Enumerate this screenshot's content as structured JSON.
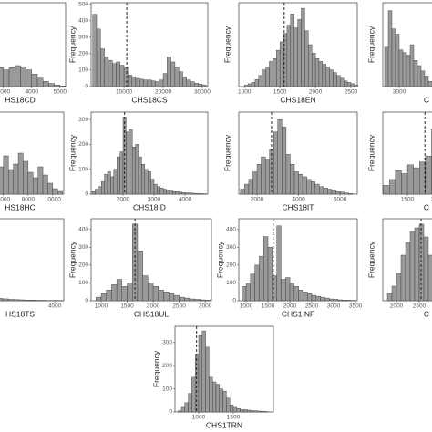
{
  "chart_data": [
    {
      "type": "histogram",
      "x_label": "HS18CD",
      "bins": [
        1000,
        1200,
        1400,
        1600,
        1800,
        2000,
        2200,
        2400,
        2600,
        2800,
        3000,
        3200,
        3400,
        3600,
        3800,
        4000,
        4200,
        4400,
        4600,
        4800,
        5000,
        5200
      ],
      "counts": [
        5,
        20,
        60,
        110,
        150,
        170,
        140,
        120,
        100,
        90,
        80,
        90,
        100,
        95,
        80,
        60,
        40,
        25,
        15,
        8,
        3
      ],
      "xlim": [
        1070,
        5200
      ],
      "ylim": [
        0,
        400
      ],
      "xticks": [
        3000,
        4000,
        5000
      ]
    },
    {
      "type": "histogram",
      "x_label": "CHS18CS",
      "y_label": "Frequency",
      "bins": [
        2000,
        3000,
        4000,
        5000,
        6000,
        7000,
        8000,
        9000,
        10000,
        11000,
        12000,
        13000,
        14000,
        15000,
        16000,
        17000,
        18000,
        19000,
        20000,
        21000,
        22000,
        23000,
        24000,
        25000,
        26000,
        27000,
        28000,
        29000,
        30000,
        31000
      ],
      "counts": [
        440,
        350,
        230,
        180,
        160,
        140,
        150,
        130,
        120,
        70,
        60,
        50,
        45,
        40,
        40,
        35,
        30,
        40,
        80,
        180,
        150,
        120,
        90,
        60,
        40,
        30,
        20,
        15,
        10
      ],
      "xlim": [
        1600,
        31400
      ],
      "ylim": [
        0,
        510
      ],
      "xticks": [
        10000,
        20000,
        30000
      ],
      "yticks": [
        0,
        100,
        200,
        300,
        400,
        500
      ],
      "mean": 10700
    },
    {
      "type": "histogram",
      "x_label": "CHS18EN",
      "y_label": "Frequency",
      "bins": [
        1000,
        1050,
        1100,
        1150,
        1200,
        1250,
        1300,
        1350,
        1400,
        1450,
        1500,
        1550,
        1600,
        1650,
        1700,
        1750,
        1800,
        1850,
        1900,
        1950,
        2000,
        2050,
        2100,
        2150,
        2200,
        2250,
        2300,
        2350,
        2400,
        2450,
        2500,
        2550,
        2600
      ],
      "counts": [
        5,
        10,
        15,
        25,
        40,
        60,
        70,
        90,
        100,
        130,
        160,
        190,
        220,
        260,
        210,
        240,
        280,
        200,
        150,
        120,
        100,
        90,
        80,
        70,
        60,
        50,
        40,
        30,
        20,
        15,
        10,
        5
      ],
      "xlim": [
        920,
        2590
      ],
      "ylim": [
        0,
        300
      ],
      "xticks": [
        1000,
        1500,
        2000,
        2500
      ],
      "mean": 1560
    },
    {
      "type": "histogram",
      "x_label": "C",
      "y_label": "Frequency",
      "bins": [
        2600,
        2700,
        2800,
        2900,
        3000,
        3100,
        3200,
        3300,
        3400,
        3500,
        3600,
        3700,
        3800,
        3900
      ],
      "counts": [
        150,
        290,
        220,
        200,
        140,
        130,
        120,
        160,
        100,
        80,
        60,
        40,
        20
      ],
      "xlim": [
        2550,
        5750
      ],
      "ylim": [
        0,
        320
      ],
      "xticks": [
        3000
      ]
    },
    {
      "type": "histogram",
      "x_label": "HS18HC",
      "bins": [
        1600,
        2000,
        2400,
        2800,
        3200,
        3600,
        4000,
        4400,
        4800,
        5200,
        5600,
        6000,
        6400,
        6800,
        7200,
        7600,
        8000,
        8400,
        8800,
        9200,
        9600,
        10000,
        10400,
        10800
      ],
      "counts": [
        10,
        30,
        60,
        80,
        100,
        130,
        160,
        180,
        150,
        120,
        100,
        140,
        90,
        110,
        150,
        120,
        80,
        60,
        100,
        70,
        40,
        20,
        10
      ],
      "xlim": [
        1420,
        10900
      ],
      "ylim": [
        0,
        300
      ],
      "xticks": [
        6000,
        8000,
        10000
      ]
    },
    {
      "type": "histogram",
      "x_label": "CHS18ID",
      "y_label": "Frequency",
      "bins": [
        1000,
        1100,
        1200,
        1300,
        1400,
        1500,
        1600,
        1700,
        1800,
        1900,
        2000,
        2100,
        2200,
        2300,
        2400,
        2500,
        2600,
        2700,
        2800,
        2900,
        3000,
        3100,
        3200,
        3300,
        3400,
        3500,
        3600,
        3700,
        3800,
        3900,
        4000,
        4100,
        4200,
        4300,
        4400,
        4500,
        4600,
        4700
      ],
      "counts": [
        10,
        20,
        30,
        50,
        80,
        90,
        70,
        100,
        150,
        170,
        310,
        250,
        260,
        190,
        200,
        150,
        120,
        100,
        90,
        60,
        40,
        30,
        25,
        20,
        15,
        15,
        10,
        10,
        8,
        6,
        5,
        5,
        4,
        3,
        2,
        2,
        1
      ],
      "xlim": [
        970,
        4735
      ],
      "ylim": [
        0,
        330
      ],
      "xticks": [
        2000,
        3000,
        4000
      ],
      "yticks": [
        0,
        100,
        200,
        300
      ],
      "mean": 2050
    },
    {
      "type": "histogram",
      "x_label": "CHS18IT",
      "y_label": "Frequency",
      "bins": [
        1200,
        1400,
        1600,
        1800,
        2000,
        2200,
        2400,
        2600,
        2800,
        3000,
        3200,
        3400,
        3600,
        3800,
        4000,
        4200,
        4400,
        4600,
        4800,
        5000,
        5200,
        5400,
        5600,
        5800,
        6000,
        6200,
        6400,
        6600
      ],
      "counts": [
        20,
        40,
        60,
        90,
        120,
        150,
        140,
        180,
        250,
        300,
        270,
        160,
        120,
        90,
        80,
        70,
        60,
        50,
        40,
        30,
        25,
        20,
        15,
        10,
        8,
        5,
        3
      ],
      "xlim": [
        1120,
        6830
      ],
      "ylim": [
        0,
        330
      ],
      "xticks": [
        2000,
        4000,
        6000
      ],
      "mean": 2700
    },
    {
      "type": "histogram",
      "x_label": "C",
      "y_label": "Frequency",
      "bins": [
        1100,
        1200,
        1300,
        1400,
        1500,
        1600,
        1700,
        1800,
        1900,
        2000,
        2100,
        2200,
        2300,
        2400,
        2500,
        2600,
        2700
      ],
      "counts": [
        30,
        50,
        80,
        70,
        100,
        90,
        110,
        130,
        220,
        170,
        250,
        160,
        140,
        100,
        60,
        30
      ],
      "xlim": [
        1090,
        3030
      ],
      "ylim": [
        0,
        280
      ],
      "xticks": [
        1500,
        2000
      ],
      "mean": 1790
    },
    {
      "type": "histogram",
      "x_label": "HS18TS",
      "bins": [
        100,
        300,
        500,
        700,
        900,
        1100,
        1300,
        1500,
        1700,
        1900,
        2100,
        2300,
        2500,
        2700,
        2900,
        3100,
        3300,
        3500,
        3700,
        3900,
        4100,
        4300
      ],
      "counts": [
        300,
        200,
        120,
        80,
        50,
        30,
        20,
        15,
        12,
        10,
        8,
        6,
        5,
        4,
        3,
        3,
        2,
        2,
        1,
        1,
        1
      ],
      "xlim": [
        70,
        4330
      ],
      "ylim": [
        0,
        350
      ],
      "xticks": [
        4000
      ]
    },
    {
      "type": "histogram",
      "x_label": "CHS18UL",
      "y_label": "Frequency",
      "bins": [
        900,
        1000,
        1100,
        1200,
        1300,
        1400,
        1500,
        1600,
        1700,
        1800,
        1900,
        2000,
        2100,
        2200,
        2300,
        2400,
        2500,
        2600,
        2700,
        2800,
        2900,
        3000,
        3100
      ],
      "counts": [
        20,
        40,
        60,
        90,
        120,
        80,
        100,
        430,
        280,
        140,
        100,
        80,
        60,
        50,
        40,
        30,
        20,
        15,
        10,
        8,
        5,
        3
      ],
      "xlim": [
        807,
        3120
      ],
      "ylim": [
        0,
        460
      ],
      "xticks": [
        1000,
        1500,
        2000,
        2500,
        3000
      ],
      "yticks": [
        0,
        100,
        200,
        300,
        400
      ],
      "mean": 1650
    },
    {
      "type": "histogram",
      "x_label": "CHS1INF",
      "y_label": "Frequency",
      "bins": [
        900,
        1000,
        1100,
        1200,
        1300,
        1400,
        1500,
        1600,
        1700,
        1800,
        1900,
        2000,
        2100,
        2200,
        2300,
        2400,
        2500,
        2600,
        2700,
        2800,
        2900,
        3000,
        3100,
        3200,
        3300,
        3400,
        3500
      ],
      "counts": [
        80,
        100,
        150,
        200,
        250,
        360,
        300,
        140,
        420,
        120,
        130,
        100,
        80,
        60,
        50,
        40,
        30,
        25,
        20,
        15,
        10,
        8,
        5,
        4,
        3,
        2
      ],
      "xlim": [
        833,
        3540
      ],
      "ylim": [
        0,
        460
      ],
      "xticks": [
        1000,
        1500,
        2000,
        2500,
        3000,
        3500
      ],
      "yticks": [
        0,
        100,
        200,
        300,
        400
      ],
      "mean": 1620
    },
    {
      "type": "histogram",
      "x_label": "C",
      "y_label": "Frequency",
      "bins": [
        1800,
        1900,
        2000,
        2100,
        2200,
        2300,
        2400,
        2500,
        2600,
        2700,
        2800,
        2900,
        3000,
        3100,
        3200,
        3300,
        3400
      ],
      "counts": [
        40,
        80,
        150,
        250,
        320,
        380,
        400,
        420,
        350,
        250,
        180,
        120,
        80,
        50,
        30,
        20
      ],
      "xlim": [
        1700,
        4260
      ],
      "ylim": [
        0,
        450
      ],
      "xticks": [
        2000,
        2500
      ],
      "mean": 2540
    },
    {
      "type": "histogram",
      "x_label": "CHS1TRN",
      "y_label": "Frequency",
      "bins": [
        700,
        750,
        800,
        850,
        900,
        950,
        1000,
        1050,
        1100,
        1150,
        1200,
        1250,
        1300,
        1350,
        1400,
        1450,
        1500,
        1550,
        1600,
        1650,
        1700,
        1750,
        1800,
        1850,
        1900,
        1950,
        2000
      ],
      "counts": [
        5,
        20,
        40,
        80,
        150,
        250,
        330,
        350,
        280,
        150,
        130,
        120,
        100,
        90,
        60,
        30,
        20,
        15,
        10,
        10,
        8,
        6,
        5,
        4,
        3,
        2
      ],
      "xlim": [
        658,
        2079
      ],
      "ylim": [
        0,
        370
      ],
      "xticks": [
        1000,
        1500
      ],
      "yticks": [
        0,
        100,
        200,
        300
      ],
      "mean": 970
    }
  ]
}
